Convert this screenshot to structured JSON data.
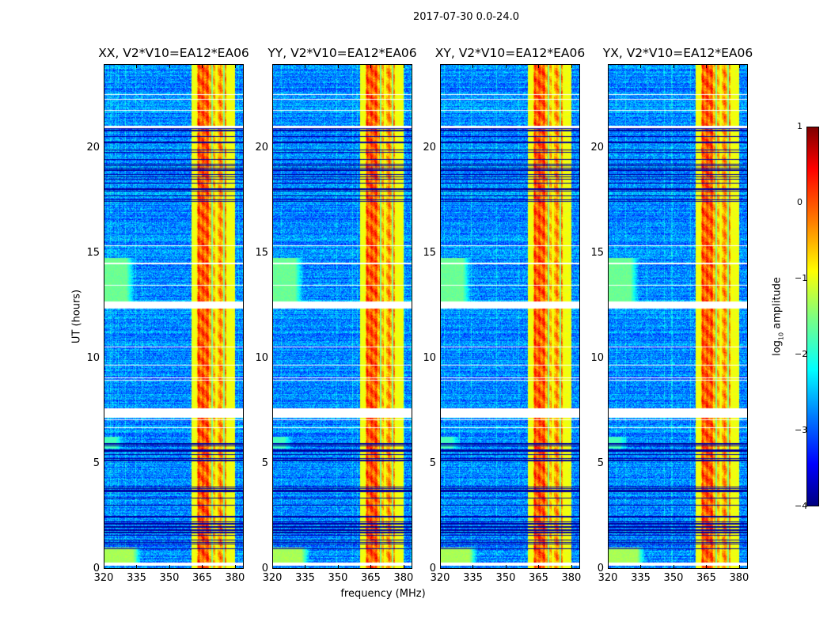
{
  "suptitle": "2017-07-30 0.0-24.0",
  "xlabel": "frequency (MHz)",
  "ylabel": "UT (hours)",
  "colorbar": {
    "label_prefix": "log",
    "label_sub": "10",
    "label_suffix": " amplitude",
    "range": [
      -4,
      1
    ],
    "ticks": [
      "1",
      "0",
      "−1",
      "−2",
      "−3",
      "−4"
    ],
    "tick_values": [
      1,
      0,
      -1,
      -2,
      -3,
      -4
    ],
    "colormap": "jet"
  },
  "chart_data": {
    "type": "heatmap",
    "xlim": [
      320,
      384
    ],
    "ylim": [
      0,
      24
    ],
    "xticks": [
      320,
      335,
      350,
      365,
      380
    ],
    "xtick_labels": [
      "320",
      "335",
      "350",
      "365",
      "380"
    ],
    "yticks": [
      0,
      5,
      10,
      15,
      20
    ],
    "ytick_labels": [
      "0",
      "5",
      "10",
      "15",
      "20"
    ],
    "background_log_amplitude": -2.7,
    "rfi_band_mhz": [
      360,
      380
    ],
    "rfi_log_amplitude": -0.4,
    "strong_channels_mhz": [
      [
        363,
        368
      ]
    ],
    "low_freq_excess": [
      {
        "freq": [
          320,
          330
        ],
        "hours": [
          12.5,
          14.8
        ],
        "value": -1.6
      },
      {
        "freq": [
          320,
          333
        ],
        "hours": [
          0.3,
          1.0
        ],
        "value": -1.3
      },
      {
        "freq": [
          320,
          325
        ],
        "hours": [
          5.7,
          6.3
        ],
        "value": -1.8
      }
    ],
    "flagged_hours": [
      [
        7.17,
        7.65
      ],
      [
        12.4,
        12.75
      ],
      [
        0.15,
        0.3
      ],
      [
        21.0,
        21.1
      ]
    ],
    "noisy_hours": [
      [
        17.4,
        21.0
      ],
      [
        0.9,
        3.9
      ],
      [
        5.0,
        6.5
      ]
    ],
    "panels": [
      {
        "title": "XX, V2*V10=EA12*EA06"
      },
      {
        "title": "YY, V2*V10=EA12*EA06"
      },
      {
        "title": "XY, V2*V10=EA12*EA06"
      },
      {
        "title": "YX, V2*V10=EA12*EA06"
      }
    ]
  }
}
